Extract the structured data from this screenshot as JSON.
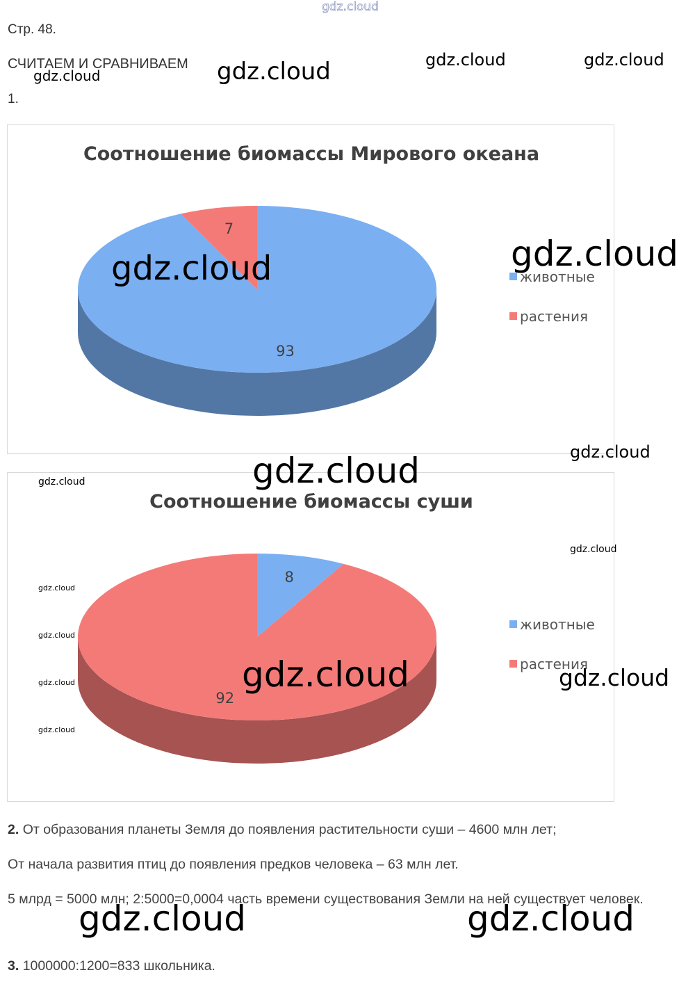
{
  "header": {
    "page": "Стр. 48.",
    "section_title": "СЧИТАЕМ И СРАВНИВАЕМ",
    "task_number": "1."
  },
  "chart_data": [
    {
      "type": "pie",
      "title": "Соотношение биомассы Мирового океана",
      "categories": [
        "животные",
        "растения"
      ],
      "values": [
        93,
        7
      ],
      "colors": [
        "#7aaff2",
        "#f47a78"
      ],
      "legend": "right"
    },
    {
      "type": "pie",
      "title": "Соотношение биомассы суши",
      "categories": [
        "животные",
        "растения"
      ],
      "values": [
        8,
        92
      ],
      "colors": [
        "#7aaff2",
        "#f47a78"
      ],
      "legend": "right"
    }
  ],
  "tasks": [
    {
      "number": "2.",
      "lines": [
        "От образования планеты Земля до появления растительности суши – 4600 млн лет;",
        "От начала развития птиц до появления предков человека – 63 млн лет.",
        "5 млрд = 5000 млн; 2:5000=0,0004 часть времени существования Земли на ней существует человек."
      ]
    },
    {
      "number": "3.",
      "lines": [
        "1000000:1200=833 школьника."
      ]
    }
  ],
  "watermarks": [
    "gdz.cloud",
    "gdz.cloud",
    "gdz.cloud",
    "gdz.cloud",
    "gdz.cloud",
    "gdz.cloud",
    "gdz.cloud",
    "gdz.cloud",
    "gdz.cloud",
    "gdz.cloud",
    "gdz.cloud",
    "gdz.cloud",
    "gdz.cloud",
    "gdz.cloud",
    "gdz.cloud",
    "gdz.cloud",
    "gdz.cloud",
    "gdz.cloud",
    "gdz.cloud"
  ]
}
